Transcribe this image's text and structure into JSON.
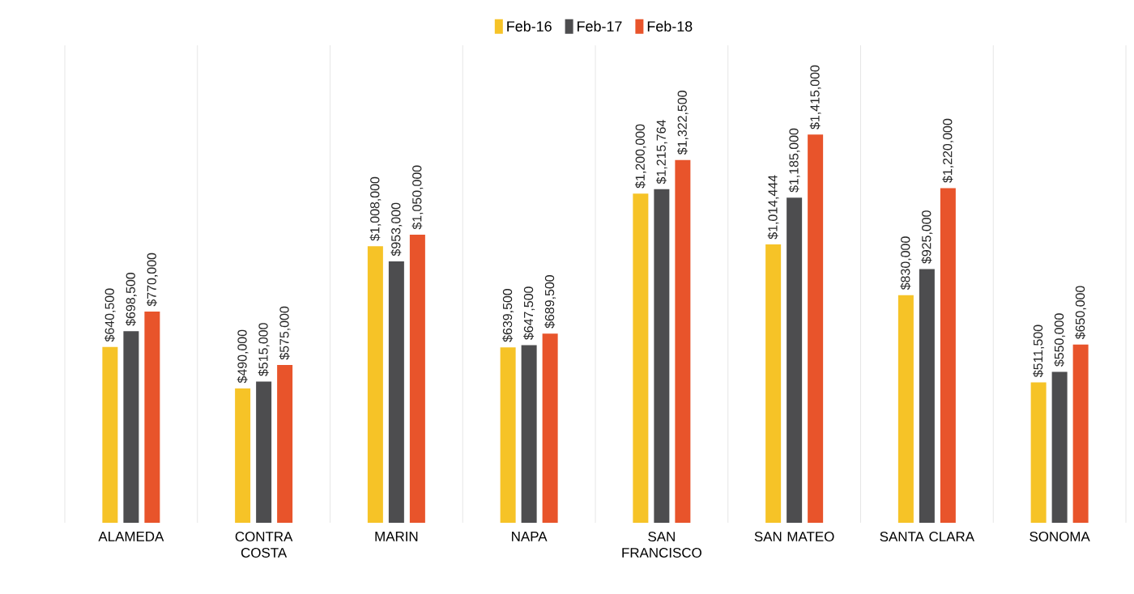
{
  "chart_data": {
    "type": "bar",
    "categories": [
      "ALAMEDA",
      "CONTRA COSTA",
      "MARIN",
      "NAPA",
      "SAN FRANCISCO",
      "SAN MATEO",
      "SANTA CLARA",
      "SONOMA"
    ],
    "series": [
      {
        "name": "Feb-16",
        "color": "#f6c327",
        "values": [
          640500,
          490000,
          1008000,
          639500,
          1200000,
          1014444,
          830000,
          511500
        ],
        "value_labels": [
          "$640,500",
          "$490,000",
          "$1,008,000",
          "$639,500",
          "$1,200,000",
          "$1,014,444",
          "$830,000",
          "$511,500"
        ]
      },
      {
        "name": "Feb-17",
        "color": "#4d4d4f",
        "values": [
          698500,
          515000,
          953000,
          647500,
          1215764,
          1185000,
          925000,
          550000
        ],
        "value_labels": [
          "$698,500",
          "$515,000",
          "$953,000",
          "$647,500",
          "$1,215,764",
          "$1,185,000",
          "$925,000",
          "$550,000"
        ]
      },
      {
        "name": "Feb-18",
        "color": "#e8542b",
        "values": [
          770000,
          575000,
          1050000,
          689500,
          1322500,
          1415000,
          1220000,
          650000
        ],
        "value_labels": [
          "$770,000",
          "$575,000",
          "$1,050,000",
          "$689,500",
          "$1,322,500",
          "$1,415,000",
          "$1,220,000",
          "$650,000"
        ]
      }
    ],
    "grid": "x",
    "legend": "top",
    "tick_labels": "x"
  }
}
